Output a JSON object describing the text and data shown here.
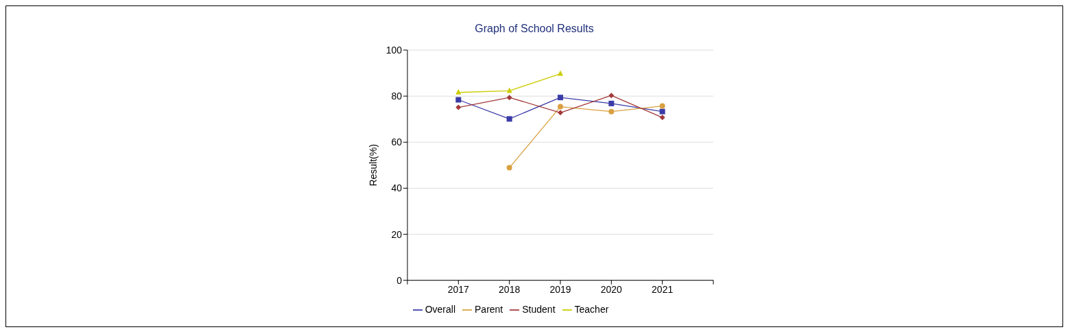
{
  "chart_data": {
    "type": "line",
    "title": "Graph of School Results",
    "ylabel": "Result(%)",
    "x": [
      2017,
      2018,
      2019,
      2020,
      2021
    ],
    "xlim": [
      2016,
      2022
    ],
    "xticks": [
      {
        "value": 2016,
        "label": null
      },
      2017,
      2018,
      2019,
      2020,
      2021,
      {
        "value": 2022,
        "label": null
      }
    ],
    "ylim": [
      0,
      100
    ],
    "yticks": [
      0,
      20,
      40,
      60,
      80,
      100
    ],
    "grid": "y",
    "legend": "bottom",
    "series": [
      {
        "name": "Overall",
        "color": "#3b3ba8",
        "marker": "square",
        "values": [
          78.4,
          70.1,
          79.4,
          76.8,
          73.3
        ]
      },
      {
        "name": "Parent",
        "color": "#d9a040",
        "marker": "circle",
        "values": [
          null,
          48.9,
          75.4,
          73.3,
          75.7
        ]
      },
      {
        "name": "Student",
        "color": "#a33a3a",
        "marker": "diamond",
        "values": [
          75.1,
          79.4,
          72.8,
          80.3,
          70.7
        ]
      },
      {
        "name": "Teacher",
        "color": "#cccc00",
        "marker": "triangle",
        "values": [
          81.6,
          82.3,
          89.7,
          null,
          null
        ]
      }
    ]
  }
}
